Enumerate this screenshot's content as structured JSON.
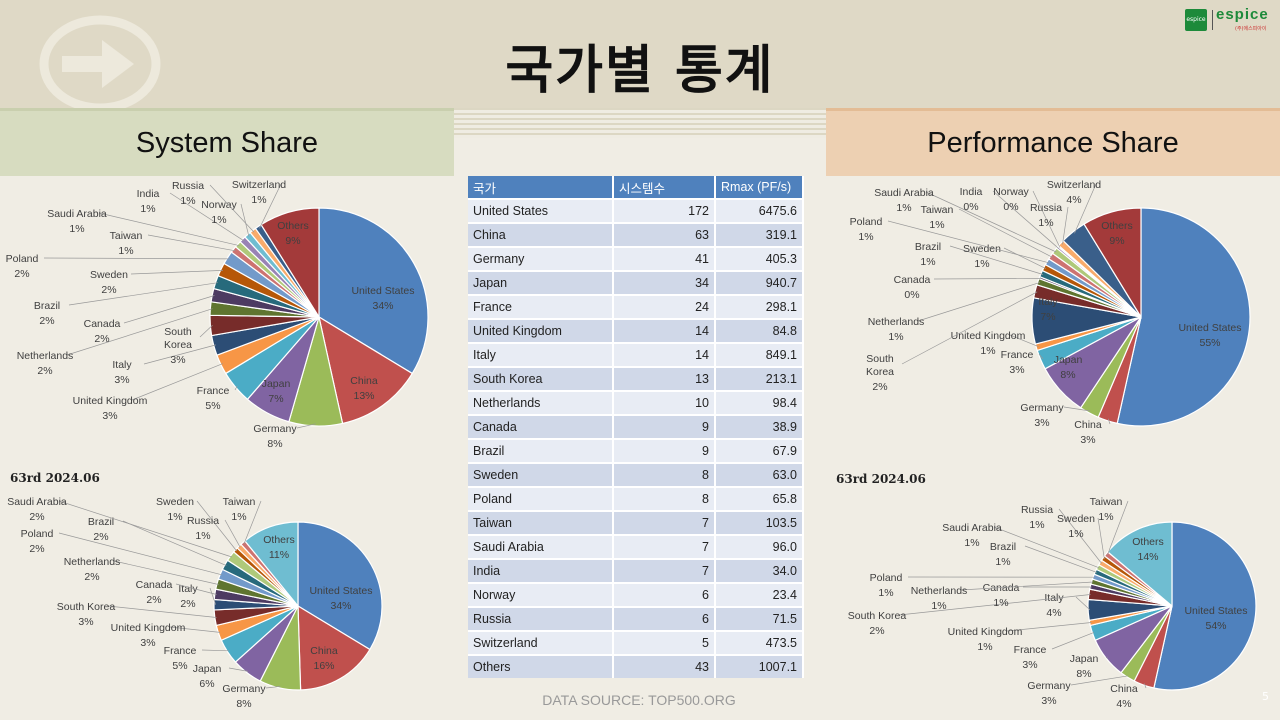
{
  "title": "국가별 통계",
  "logo": {
    "word": "espice",
    "mark": "espice",
    "sub": "(주)에스피아이"
  },
  "left_header": "System Share",
  "right_header": "Performance Share",
  "source": "DATA SOURCE: TOP500.ORG",
  "page_number": "5",
  "table": {
    "headers": [
      "국가",
      "시스템수",
      "Rmax (PF/s)"
    ],
    "rows": [
      [
        "United States",
        "172",
        "6475.6"
      ],
      [
        "China",
        "63",
        "319.1"
      ],
      [
        "Germany",
        "41",
        "405.3"
      ],
      [
        "Japan",
        "34",
        "940.7"
      ],
      [
        "France",
        "24",
        "298.1"
      ],
      [
        "United Kingdom",
        "14",
        "84.8"
      ],
      [
        "Italy",
        "14",
        "849.1"
      ],
      [
        "South Korea",
        "13",
        "213.1"
      ],
      [
        "Netherlands",
        "10",
        "98.4"
      ],
      [
        "Canada",
        "9",
        "38.9"
      ],
      [
        "Brazil",
        "9",
        "67.9"
      ],
      [
        "Sweden",
        "8",
        "63.0"
      ],
      [
        "Poland",
        "8",
        "65.8"
      ],
      [
        "Taiwan",
        "7",
        "103.5"
      ],
      [
        "Saudi Arabia",
        "7",
        "96.0"
      ],
      [
        "India",
        "7",
        "34.0"
      ],
      [
        "Norway",
        "6",
        "23.4"
      ],
      [
        "Russia",
        "6",
        "71.5"
      ],
      [
        "Switzerland",
        "5",
        "473.5"
      ],
      [
        "Others",
        "43",
        "1007.1"
      ]
    ]
  },
  "colors": {
    "United States": "#4f81bd",
    "China": "#c0504d",
    "Germany": "#9bbb59",
    "Japan": "#8064a2",
    "France": "#4bacc6",
    "United Kingdom": "#f79646",
    "Italy": "#2c4d75",
    "South Korea": "#772c2a",
    "Netherlands": "#5f7530",
    "Canada": "#4d3b62",
    "Brazil": "#276a7c",
    "Sweden": "#b65708",
    "Poland": "#729aca",
    "Taiwan": "#cd7371",
    "Saudi Arabia": "#afc97a",
    "India": "#9983b5",
    "Norway": "#6fbdd1",
    "Russia": "#f9ab6b",
    "Switzerland": "#3a5f8a",
    "Others": "#a33a3a",
    "Others_small": "#6fbdd1"
  },
  "chart_data": [
    {
      "id": "system-share-current",
      "type": "pie",
      "categories": [
        "United States",
        "China",
        "Germany",
        "Japan",
        "France",
        "United Kingdom",
        "Italy",
        "South Korea",
        "Netherlands",
        "Canada",
        "Brazil",
        "Sweden",
        "Poland",
        "Taiwan",
        "Saudi Arabia",
        "India",
        "Norway",
        "Russia",
        "Switzerland",
        "Others"
      ],
      "values": [
        34,
        13,
        8,
        7,
        5,
        3,
        3,
        3,
        2,
        2,
        2,
        2,
        2,
        1,
        1,
        1,
        1,
        1,
        1,
        9
      ],
      "labels": [
        {
          "name": "United States",
          "pct": "34%",
          "anchor": "inside"
        },
        {
          "name": "China",
          "pct": "13%",
          "anchor": "inside"
        },
        {
          "name": "Germany",
          "pct": "8%",
          "anchor": "outside"
        },
        {
          "name": "Japan",
          "pct": "7%",
          "anchor": "inside"
        },
        {
          "name": "France",
          "pct": "5%",
          "anchor": "outside"
        },
        {
          "name": "United Kingdom",
          "pct": "3%",
          "anchor": "outside"
        },
        {
          "name": "Italy",
          "pct": "3%",
          "anchor": "outside"
        },
        {
          "name": "South Korea",
          "pct": "3%",
          "anchor": "outside"
        },
        {
          "name": "Netherlands",
          "pct": "2%",
          "anchor": "outside"
        },
        {
          "name": "Canada",
          "pct": "2%",
          "anchor": "outside"
        },
        {
          "name": "Brazil",
          "pct": "2%",
          "anchor": "outside"
        },
        {
          "name": "Sweden",
          "pct": "2%",
          "anchor": "outside"
        },
        {
          "name": "Poland",
          "pct": "2%",
          "anchor": "outside"
        },
        {
          "name": "Taiwan",
          "pct": "1%",
          "anchor": "outside"
        },
        {
          "name": "Saudi Arabia",
          "pct": "1%",
          "anchor": "outside"
        },
        {
          "name": "India",
          "pct": "1%",
          "anchor": "outside"
        },
        {
          "name": "Norway",
          "pct": "1%",
          "anchor": "outside"
        },
        {
          "name": "Russia",
          "pct": "1%",
          "anchor": "outside"
        },
        {
          "name": "Switzerland",
          "pct": "1%",
          "anchor": "outside"
        },
        {
          "name": "Others",
          "pct": "9%",
          "anchor": "inside"
        }
      ]
    },
    {
      "id": "system-share-63rd",
      "type": "pie",
      "period_label": "63rd 2024.06",
      "categories": [
        "United States",
        "China",
        "Germany",
        "Japan",
        "France",
        "United Kingdom",
        "South Korea",
        "Italy",
        "Canada",
        "Netherlands",
        "Poland",
        "Brazil",
        "Saudi Arabia",
        "Sweden",
        "Russia",
        "Taiwan",
        "Others"
      ],
      "values": [
        34,
        16,
        8,
        6,
        5,
        3,
        3,
        2,
        2,
        2,
        2,
        2,
        2,
        1,
        1,
        1,
        11
      ],
      "labels": [
        {
          "name": "United States",
          "pct": "34%",
          "anchor": "inside"
        },
        {
          "name": "China",
          "pct": "16%",
          "anchor": "inside"
        },
        {
          "name": "Germany",
          "pct": "8%",
          "anchor": "outside"
        },
        {
          "name": "Japan",
          "pct": "6%",
          "anchor": "outside"
        },
        {
          "name": "France",
          "pct": "5%",
          "anchor": "outside"
        },
        {
          "name": "United Kingdom",
          "pct": "3%",
          "anchor": "outside"
        },
        {
          "name": "South Korea",
          "pct": "3%",
          "anchor": "outside"
        },
        {
          "name": "Italy",
          "pct": "2%",
          "anchor": "outside"
        },
        {
          "name": "Canada",
          "pct": "2%",
          "anchor": "outside"
        },
        {
          "name": "Netherlands",
          "pct": "2%",
          "anchor": "outside"
        },
        {
          "name": "Poland",
          "pct": "2%",
          "anchor": "outside"
        },
        {
          "name": "Brazil",
          "pct": "2%",
          "anchor": "outside"
        },
        {
          "name": "Saudi Arabia",
          "pct": "2%",
          "anchor": "outside"
        },
        {
          "name": "Sweden",
          "pct": "1%",
          "anchor": "outside"
        },
        {
          "name": "Russia",
          "pct": "1%",
          "anchor": "outside"
        },
        {
          "name": "Taiwan",
          "pct": "1%",
          "anchor": "outside"
        },
        {
          "name": "Others",
          "pct": "11%",
          "anchor": "inside"
        }
      ]
    },
    {
      "id": "performance-share-current",
      "type": "pie",
      "categories": [
        "United States",
        "China",
        "Germany",
        "Japan",
        "France",
        "United Kingdom",
        "Italy",
        "South Korea",
        "Netherlands",
        "Canada",
        "Brazil",
        "Sweden",
        "Poland",
        "Taiwan",
        "Saudi Arabia",
        "India",
        "Norway",
        "Russia",
        "Switzerland",
        "Others"
      ],
      "values": [
        55,
        3,
        3,
        8,
        3,
        1,
        7,
        2,
        1,
        0.3,
        1,
        1,
        1,
        1,
        1,
        0.3,
        0.2,
        1,
        4,
        9
      ],
      "labels": [
        {
          "name": "United States",
          "pct": "55%",
          "anchor": "inside"
        },
        {
          "name": "China",
          "pct": "3%",
          "anchor": "outside"
        },
        {
          "name": "Germany",
          "pct": "3%",
          "anchor": "outside"
        },
        {
          "name": "Japan",
          "pct": "8%",
          "anchor": "inside"
        },
        {
          "name": "France",
          "pct": "3%",
          "anchor": "outside"
        },
        {
          "name": "United Kingdom",
          "pct": "1%",
          "anchor": "outside"
        },
        {
          "name": "Italy",
          "pct": "7%",
          "anchor": "inside"
        },
        {
          "name": "South Korea",
          "pct": "2%",
          "anchor": "outside"
        },
        {
          "name": "Netherlands",
          "pct": "1%",
          "anchor": "outside"
        },
        {
          "name": "Canada",
          "pct": "0%",
          "anchor": "outside"
        },
        {
          "name": "Brazil",
          "pct": "1%",
          "anchor": "outside"
        },
        {
          "name": "Sweden",
          "pct": "1%",
          "anchor": "outside"
        },
        {
          "name": "Poland",
          "pct": "1%",
          "anchor": "outside"
        },
        {
          "name": "Taiwan",
          "pct": "1%",
          "anchor": "outside"
        },
        {
          "name": "Saudi Arabia",
          "pct": "1%",
          "anchor": "outside"
        },
        {
          "name": "India",
          "pct": "0%",
          "anchor": "outside"
        },
        {
          "name": "Norway",
          "pct": "0%",
          "anchor": "outside"
        },
        {
          "name": "Russia",
          "pct": "1%",
          "anchor": "outside"
        },
        {
          "name": "Switzerland",
          "pct": "4%",
          "anchor": "outside"
        },
        {
          "name": "Others",
          "pct": "9%",
          "anchor": "inside"
        }
      ]
    },
    {
      "id": "performance-share-63rd",
      "type": "pie",
      "period_label": "63rd 2024.06",
      "categories": [
        "United States",
        "China",
        "Germany",
        "Japan",
        "France",
        "United Kingdom",
        "Italy",
        "South Korea",
        "Canada",
        "Netherlands",
        "Poland",
        "Brazil",
        "Saudi Arabia",
        "Russia",
        "Sweden",
        "Taiwan",
        "Others"
      ],
      "values": [
        54,
        4,
        3,
        8,
        3,
        1,
        4,
        2,
        1,
        1,
        1,
        1,
        1,
        1,
        1,
        1,
        14
      ],
      "labels": [
        {
          "name": "United States",
          "pct": "54%",
          "anchor": "inside"
        },
        {
          "name": "China",
          "pct": "4%",
          "anchor": "outside"
        },
        {
          "name": "Germany",
          "pct": "3%",
          "anchor": "outside"
        },
        {
          "name": "Japan",
          "pct": "8%",
          "anchor": "outside"
        },
        {
          "name": "France",
          "pct": "3%",
          "anchor": "outside"
        },
        {
          "name": "United Kingdom",
          "pct": "1%",
          "anchor": "outside"
        },
        {
          "name": "Italy",
          "pct": "4%",
          "anchor": "outside"
        },
        {
          "name": "South Korea",
          "pct": "2%",
          "anchor": "outside"
        },
        {
          "name": "Canada",
          "pct": "1%",
          "anchor": "outside"
        },
        {
          "name": "Netherlands",
          "pct": "1%",
          "anchor": "outside"
        },
        {
          "name": "Poland",
          "pct": "1%",
          "anchor": "outside"
        },
        {
          "name": "Brazil",
          "pct": "1%",
          "anchor": "outside"
        },
        {
          "name": "Saudi Arabia",
          "pct": "1%",
          "anchor": "outside"
        },
        {
          "name": "Russia",
          "pct": "1%",
          "anchor": "outside"
        },
        {
          "name": "Sweden",
          "pct": "1%",
          "anchor": "outside"
        },
        {
          "name": "Taiwan",
          "pct": "1%",
          "anchor": "outside"
        },
        {
          "name": "Others",
          "pct": "14%",
          "anchor": "inside"
        }
      ]
    }
  ]
}
